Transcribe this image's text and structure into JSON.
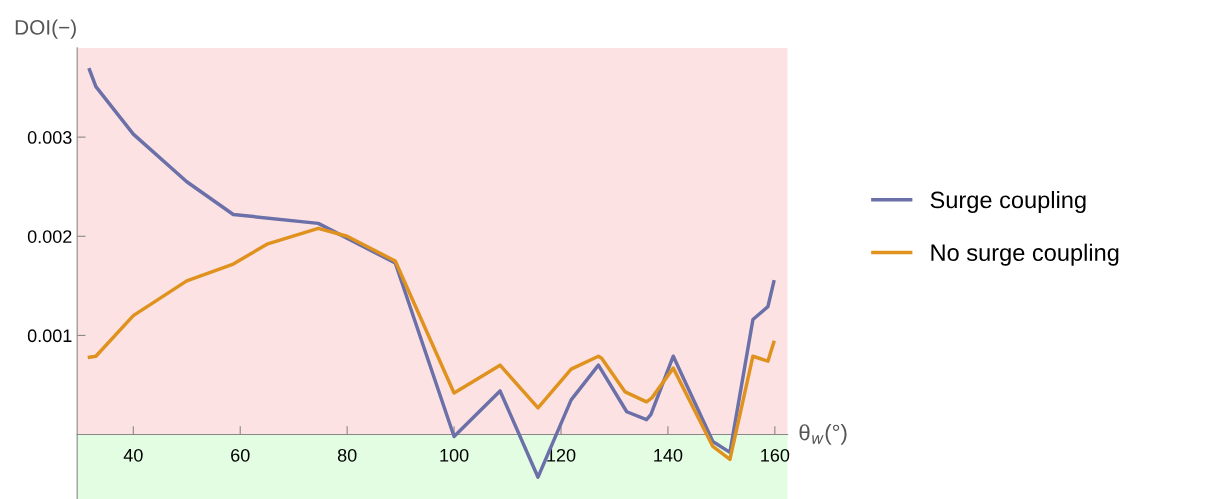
{
  "chart_data": {
    "type": "line",
    "xlabel": "θ$_{w}$(°)",
    "ylabel": "DOI(−)",
    "series": [
      {
        "name": "Surge coupling",
        "color": "#6b70a8",
        "x": [
          31.8,
          33,
          40,
          50,
          58.7,
          74.6,
          89,
          100,
          108.6,
          115.7,
          121.9,
          127,
          132.3,
          136,
          136.8,
          141,
          148.4,
          151.6,
          155.9,
          158.7,
          159.8
        ],
        "values": [
          0.00368,
          0.00351,
          0.00303,
          0.00255,
          0.00222,
          0.00213,
          0.00173,
          -2e-05,
          0.00044,
          -0.00043,
          0.00035,
          0.0007,
          0.00023,
          0.00015,
          0.0002,
          0.00079,
          -7e-05,
          -0.00018,
          0.00116,
          0.00129,
          0.00154
        ]
      },
      {
        "name": "No surge coupling",
        "color": "#e0921e",
        "x": [
          31.8,
          33,
          40,
          50,
          58.7,
          65,
          74.6,
          80,
          89,
          100,
          108.6,
          115.7,
          121.9,
          127,
          127.6,
          132,
          136,
          137,
          141,
          148.4,
          151.6,
          155.9,
          158.7,
          159.8
        ],
        "values": [
          0.00078,
          0.00079,
          0.0012,
          0.00155,
          0.00172,
          0.00192,
          0.00208,
          0.002,
          0.00175,
          0.00042,
          0.0007,
          0.00027,
          0.00066,
          0.00079,
          0.00077,
          0.00043,
          0.00033,
          0.00037,
          0.00067,
          -0.00012,
          -0.00025,
          0.00079,
          0.00074,
          0.00093
        ]
      }
    ],
    "xlim": [
      29.5,
      162.4
    ],
    "ylim": [
      -0.00065,
      0.0039
    ],
    "xticks": [
      40,
      60,
      80,
      100,
      120,
      140,
      160
    ],
    "yticks": [
      0.001,
      0.002,
      0.003
    ],
    "bands": [
      {
        "axis": "y",
        "from": 0,
        "to": 0.0039,
        "color": "#fde2e4"
      },
      {
        "axis": "y",
        "from": -0.00065,
        "to": 0,
        "color": "#e3fde2"
      }
    ],
    "grid": false,
    "legend": "right",
    "line_style": "solid"
  }
}
